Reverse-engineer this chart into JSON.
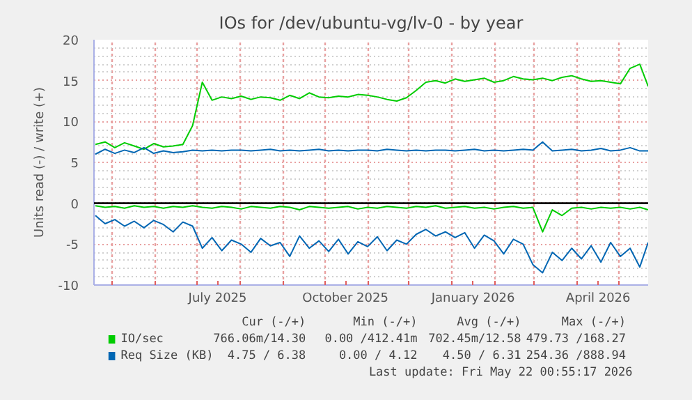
{
  "chart_data": {
    "type": "line",
    "title": "IOs for /dev/ubuntu-vg/lv-0 - by year",
    "ylabel": "Units read (-) / write (+)",
    "x": [
      "2025-04-19",
      "2025-04-26",
      "2025-05-03",
      "2025-05-10",
      "2025-05-17",
      "2025-05-24",
      "2025-05-31",
      "2025-06-07",
      "2025-06-14",
      "2025-06-21",
      "2025-06-28",
      "2025-07-05",
      "2025-07-12",
      "2025-07-19",
      "2025-07-26",
      "2025-08-02",
      "2025-08-09",
      "2025-08-16",
      "2025-08-23",
      "2025-08-30",
      "2025-09-06",
      "2025-09-13",
      "2025-09-20",
      "2025-09-27",
      "2025-10-04",
      "2025-10-11",
      "2025-10-18",
      "2025-10-25",
      "2025-11-01",
      "2025-11-08",
      "2025-11-15",
      "2025-11-22",
      "2025-11-29",
      "2025-12-06",
      "2025-12-13",
      "2025-12-20",
      "2025-12-27",
      "2026-01-03",
      "2026-01-10",
      "2026-01-17",
      "2026-01-24",
      "2026-01-31",
      "2026-02-07",
      "2026-02-14",
      "2026-02-21",
      "2026-02-28",
      "2026-03-07",
      "2026-03-14",
      "2026-03-21",
      "2026-03-28",
      "2026-04-04",
      "2026-04-11",
      "2026-04-18",
      "2026-04-25",
      "2026-05-02",
      "2026-05-09",
      "2026-05-16",
      "2026-05-22"
    ],
    "series": [
      {
        "name": "IO/sec",
        "color": "#00cc00",
        "values": [
          7.2,
          7.5,
          6.8,
          7.4,
          7.0,
          6.6,
          7.3,
          6.9,
          7.0,
          7.2,
          9.5,
          14.8,
          12.6,
          13.0,
          12.8,
          13.1,
          12.7,
          13.0,
          12.9,
          12.6,
          13.2,
          12.8,
          13.5,
          13.0,
          12.9,
          13.1,
          13.0,
          13.3,
          13.2,
          13.0,
          12.7,
          12.5,
          12.9,
          13.8,
          14.8,
          15.0,
          14.7,
          15.2,
          14.9,
          15.1,
          15.3,
          14.8,
          15.0,
          15.5,
          15.2,
          15.1,
          15.3,
          15.0,
          15.4,
          15.6,
          15.2,
          14.9,
          15.0,
          14.8,
          14.6,
          16.5,
          17.0,
          14.3
        ]
      },
      {
        "color": "#00cc00",
        "values": [
          -0.3,
          -0.5,
          -0.4,
          -0.6,
          -0.3,
          -0.5,
          -0.4,
          -0.6,
          -0.4,
          -0.5,
          -0.3,
          -0.5,
          -0.6,
          -0.4,
          -0.5,
          -0.7,
          -0.4,
          -0.5,
          -0.6,
          -0.4,
          -0.5,
          -0.8,
          -0.4,
          -0.5,
          -0.6,
          -0.5,
          -0.4,
          -0.7,
          -0.5,
          -0.6,
          -0.4,
          -0.5,
          -0.6,
          -0.4,
          -0.5,
          -0.3,
          -0.6,
          -0.5,
          -0.4,
          -0.6,
          -0.5,
          -0.7,
          -0.5,
          -0.4,
          -0.6,
          -0.5,
          -3.5,
          -0.8,
          -1.5,
          -0.6,
          -0.5,
          -0.7,
          -0.5,
          -0.6,
          -0.5,
          -0.7,
          -0.5,
          -0.8
        ]
      },
      {
        "name": "Req Size (KB)",
        "color": "#0066b3",
        "values": [
          6.0,
          6.6,
          6.1,
          6.5,
          6.2,
          6.8,
          6.1,
          6.4,
          6.2,
          6.3,
          6.5,
          6.4,
          6.5,
          6.4,
          6.5,
          6.5,
          6.4,
          6.5,
          6.6,
          6.4,
          6.5,
          6.4,
          6.5,
          6.6,
          6.4,
          6.5,
          6.4,
          6.5,
          6.5,
          6.4,
          6.6,
          6.5,
          6.4,
          6.5,
          6.4,
          6.5,
          6.5,
          6.4,
          6.5,
          6.6,
          6.4,
          6.5,
          6.4,
          6.5,
          6.6,
          6.5,
          7.5,
          6.4,
          6.5,
          6.6,
          6.4,
          6.5,
          6.7,
          6.4,
          6.5,
          6.8,
          6.4,
          6.4
        ]
      },
      {
        "color": "#0066b3",
        "values": [
          -1.5,
          -2.5,
          -2.0,
          -2.8,
          -2.2,
          -3.0,
          -2.1,
          -2.6,
          -3.5,
          -2.3,
          -2.8,
          -5.5,
          -4.2,
          -5.8,
          -4.5,
          -5.0,
          -6.0,
          -4.3,
          -5.2,
          -4.8,
          -6.5,
          -4.0,
          -5.5,
          -4.6,
          -5.9,
          -4.4,
          -6.2,
          -4.7,
          -5.3,
          -4.1,
          -5.8,
          -4.5,
          -5.0,
          -3.8,
          -3.2,
          -4.0,
          -3.5,
          -4.2,
          -3.6,
          -5.5,
          -3.9,
          -4.6,
          -6.2,
          -4.4,
          -5.0,
          -7.5,
          -8.5,
          -6.0,
          -7.0,
          -5.5,
          -6.8,
          -5.2,
          -7.2,
          -4.8,
          -6.5,
          -5.5,
          -7.8,
          -4.8
        ]
      }
    ],
    "xlim": [
      "2025-04-18",
      "2026-05-22"
    ],
    "xticks": [
      {
        "value": "2025-05-01",
        "label": null
      },
      {
        "value": "2025-06-01",
        "label": null
      },
      {
        "value": "2025-07-01",
        "label": null
      },
      {
        "value": "2025-07-16",
        "label": "July 2025"
      },
      {
        "value": "2025-08-01",
        "label": null
      },
      {
        "value": "2025-09-01",
        "label": null
      },
      {
        "value": "2025-10-01",
        "label": null
      },
      {
        "value": "2025-10-16",
        "label": "October 2025"
      },
      {
        "value": "2025-11-01",
        "label": null
      },
      {
        "value": "2025-12-01",
        "label": null
      },
      {
        "value": "2026-01-01",
        "label": null
      },
      {
        "value": "2026-01-16",
        "label": "January 2026"
      },
      {
        "value": "2026-02-01",
        "label": null
      },
      {
        "value": "2026-03-01",
        "label": null
      },
      {
        "value": "2026-04-01",
        "label": null
      },
      {
        "value": "2026-04-16",
        "label": "April 2026"
      },
      {
        "value": "2026-05-01",
        "label": null
      }
    ],
    "ylim": [
      -10,
      20
    ],
    "yticks": [
      -10,
      -5,
      0,
      5,
      10,
      15,
      20
    ],
    "ref_lines": [
      {
        "axis": "y",
        "value": 0,
        "color": "#000000"
      }
    ],
    "grid": true,
    "legend": "bottom",
    "annotations": [
      "Cur (-/+)",
      "Min (-/+)",
      "Avg (-/+)",
      "Max (-/+)",
      "766.06m/14.30",
      "0.00 /412.41m",
      "702.45m/12.58",
      "479.73 /168.27",
      "4.75 / 6.38",
      "0.00 / 4.12",
      "4.50 / 6.31",
      "254.36 /888.94",
      "Last update: Fri May 22 00:55:17 2026"
    ]
  }
}
